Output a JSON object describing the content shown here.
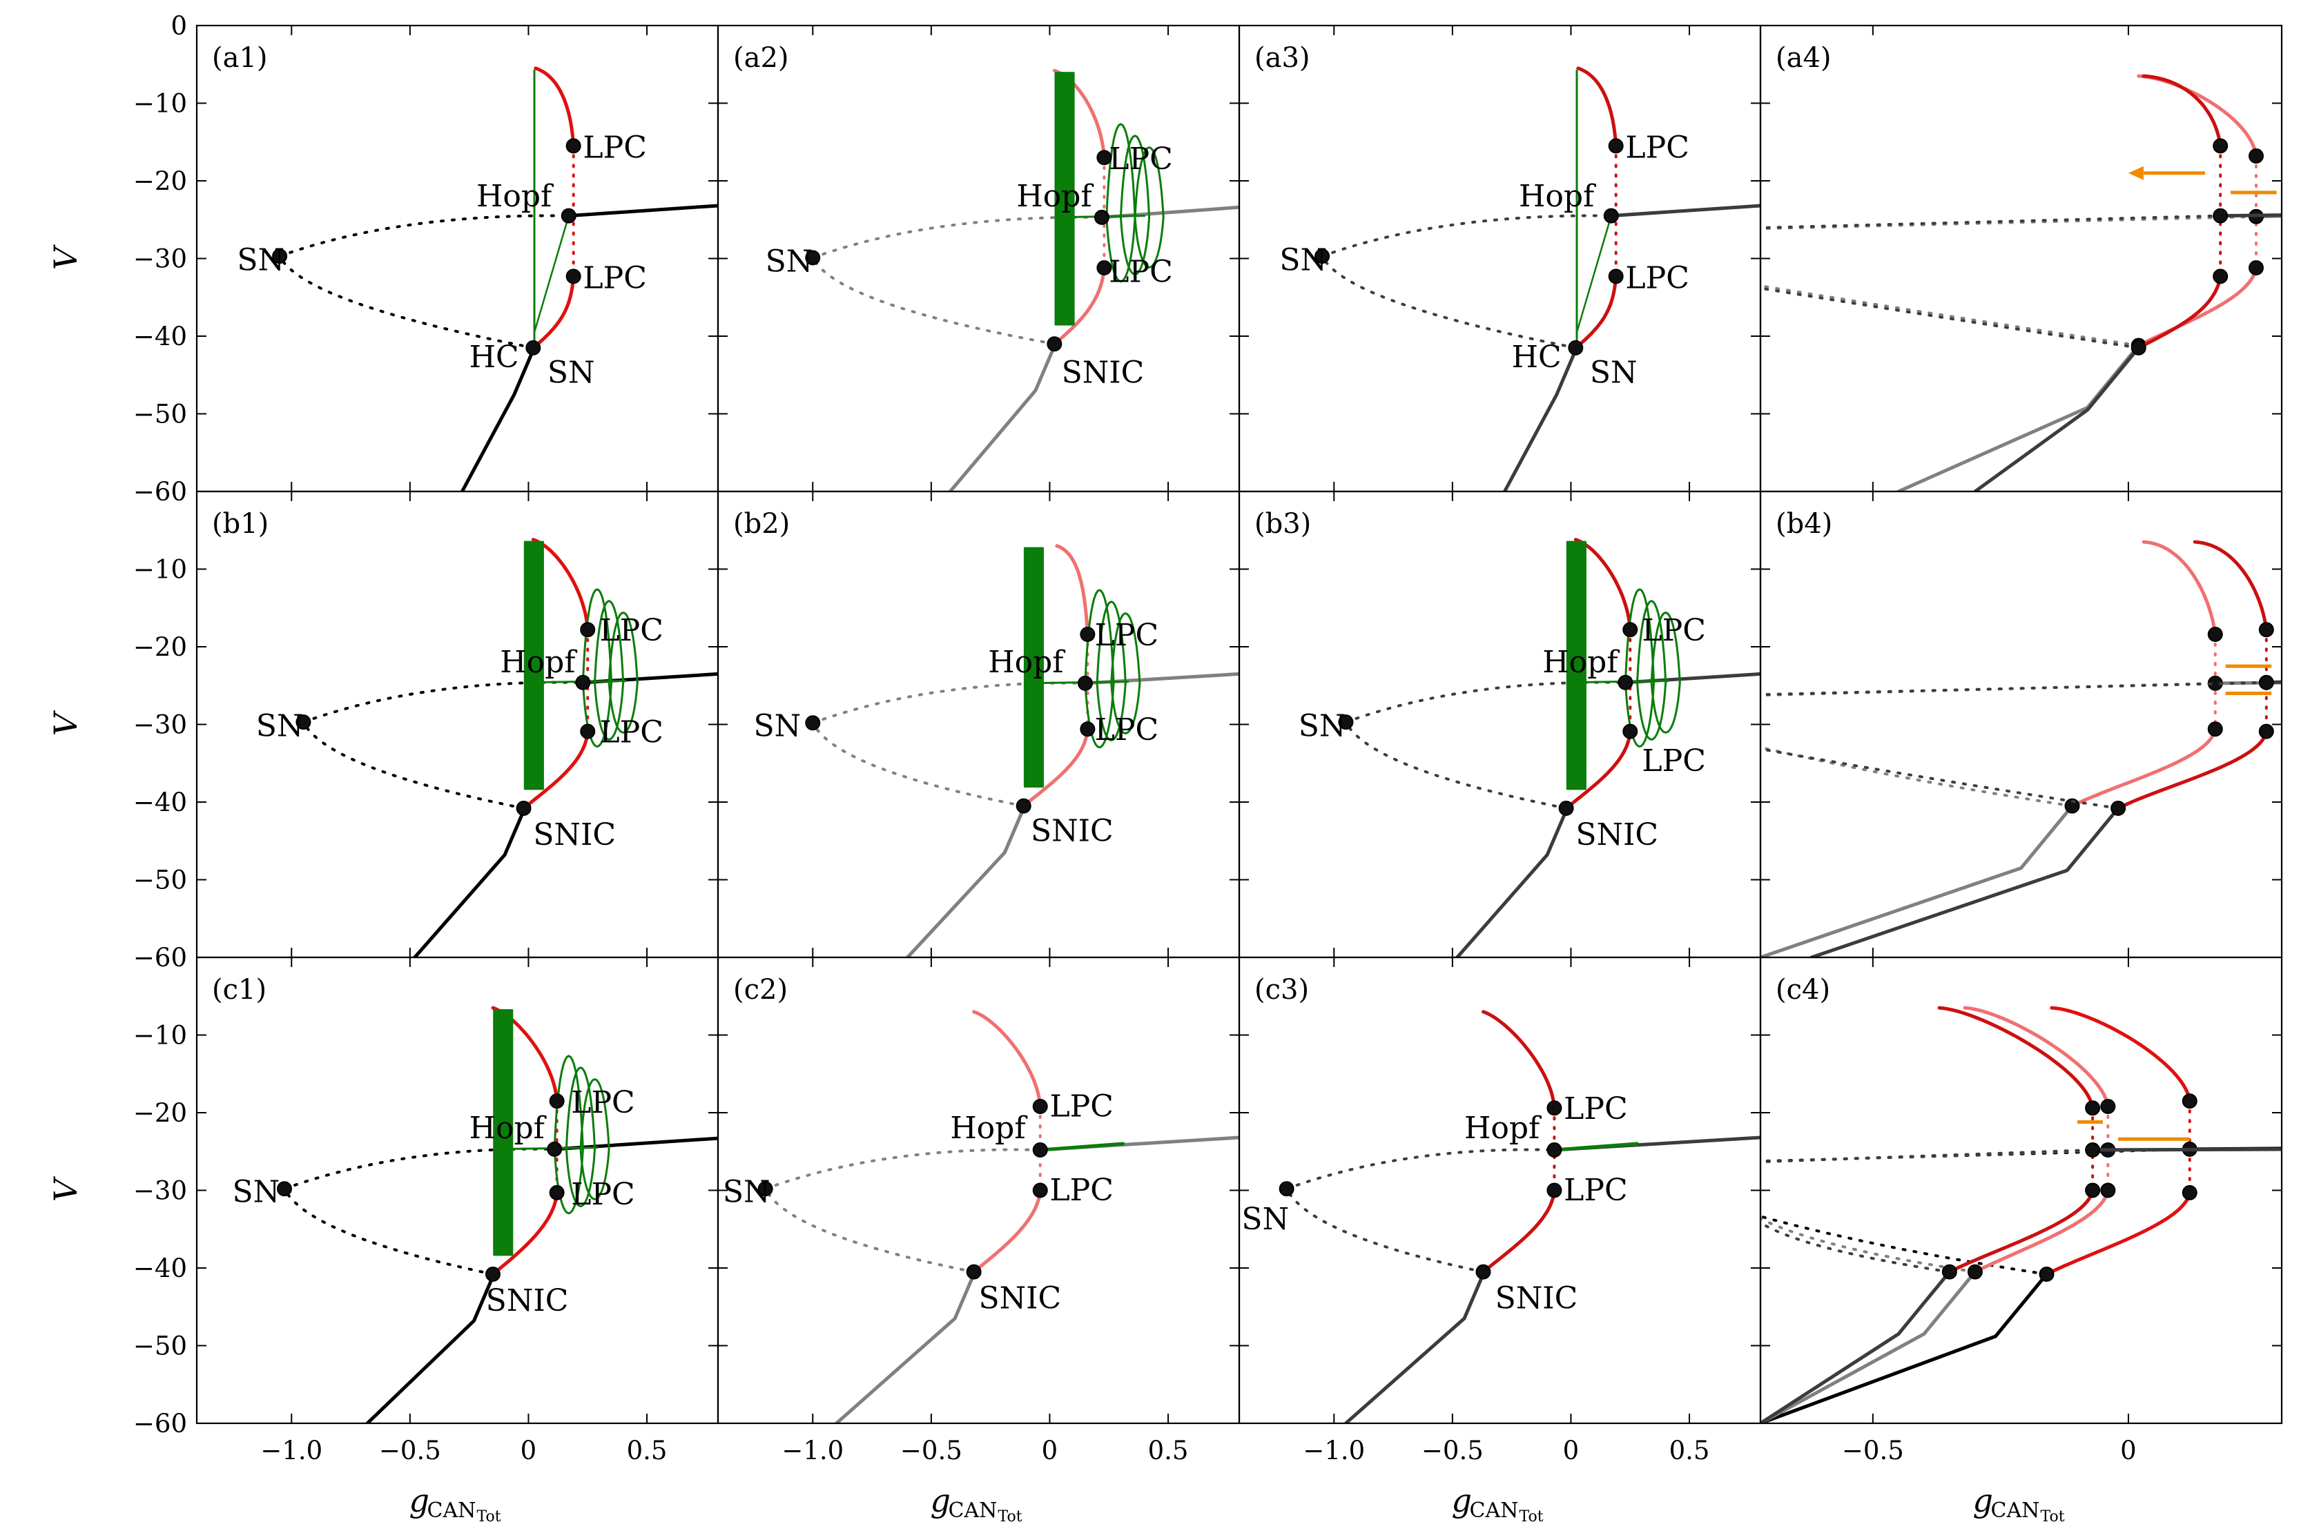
{
  "chart_data": {
    "type": "line",
    "description_axes": {
      "ylabel": "V",
      "xlabel_main": "g",
      "xlabel_sub": "CAN",
      "xlabel_subsub": "Tot",
      "ylim": [
        -60,
        0
      ],
      "yticks": [
        0,
        -10,
        -20,
        -30,
        -40,
        -50,
        -60
      ],
      "ytick_labels": [
        "0",
        "−10",
        "−20",
        "−30",
        "−40",
        "−50",
        "−60"
      ]
    },
    "columns": [
      {
        "xlim": [
          -1.4,
          0.8
        ],
        "xticks": [
          -1.0,
          -0.5,
          0,
          0.5
        ],
        "xtick_labels": [
          "−1.0",
          "−0.5",
          "0",
          "0.5"
        ]
      },
      {
        "xlim": [
          -1.4,
          0.8
        ],
        "xticks": [
          -1.0,
          -0.5,
          0,
          0.5
        ],
        "xtick_labels": [
          "−1.0",
          "−0.5",
          "0",
          "0.5"
        ]
      },
      {
        "xlim": [
          -1.4,
          0.8
        ],
        "xticks": [
          -1.0,
          -0.5,
          0,
          0.5
        ],
        "xtick_labels": [
          "−1.0",
          "−0.5",
          "0",
          "0.5"
        ]
      },
      {
        "xlim": [
          -0.72,
          0.3
        ],
        "xticks": [
          -0.5,
          0
        ],
        "xtick_labels": [
          "−0.5",
          "0"
        ]
      }
    ],
    "panels": [
      {
        "id": "a1",
        "label": "(a1)",
        "row": 0,
        "col": 0,
        "stable": "#000000",
        "cycle": "#e01010",
        "green": "osc1",
        "sn": [
          -1.05,
          -29.7
        ],
        "fold": [
          0.02,
          -41.5
        ],
        "hopf": [
          0.17,
          -24.5
        ],
        "lpc_top": [
          0.19,
          -15.5
        ],
        "lpc_bot": [
          0.19,
          -32.3
        ],
        "top": [
          0.03,
          -5.5
        ],
        "right_end": 0.8,
        "right_v": -23.2,
        "low_start": -0.28,
        "labels": [
          {
            "t": "SN",
            "x": -1.23,
            "y": -31.5
          },
          {
            "t": "HC",
            "x": -0.25,
            "y": -44
          },
          {
            "t": "SN",
            "x": 0.08,
            "y": -46
          },
          {
            "t": "Hopf",
            "x": -0.22,
            "y": -23.3
          },
          {
            "t": "LPC",
            "x": 0.23,
            "y": -17
          },
          {
            "t": "LPC",
            "x": 0.23,
            "y": -33.8
          }
        ]
      },
      {
        "id": "a2",
        "label": "(a2)",
        "row": 0,
        "col": 1,
        "stable": "#808080",
        "cycle": "#f07070",
        "green": "osc2",
        "sn": [
          -1.0,
          -29.9
        ],
        "fold": [
          0.02,
          -41.0
        ],
        "hopf": [
          0.22,
          -24.7
        ],
        "lpc_top": [
          0.23,
          -17.0
        ],
        "lpc_bot": [
          0.23,
          -31.2
        ],
        "top": [
          0.02,
          -5.8
        ],
        "right_end": 0.8,
        "right_v": -23.4,
        "low_start": -0.42,
        "labels": [
          {
            "t": "SN",
            "x": -1.2,
            "y": -31.7
          },
          {
            "t": "SNIC",
            "x": 0.05,
            "y": -46
          },
          {
            "t": "Hopf",
            "x": -0.14,
            "y": -23.3
          },
          {
            "t": "LPC",
            "x": 0.25,
            "y": -18.5
          },
          {
            "t": "LPC",
            "x": 0.25,
            "y": -33
          }
        ]
      },
      {
        "id": "a3",
        "label": "(a3)",
        "row": 0,
        "col": 2,
        "stable": "#3c3c3c",
        "cycle": "#cc1010",
        "green": "osc1",
        "sn": [
          -1.05,
          -29.7
        ],
        "fold": [
          0.02,
          -41.5
        ],
        "hopf": [
          0.17,
          -24.5
        ],
        "lpc_top": [
          0.19,
          -15.5
        ],
        "lpc_bot": [
          0.19,
          -32.3
        ],
        "top": [
          0.03,
          -5.5
        ],
        "right_end": 0.8,
        "right_v": -23.2,
        "low_start": -0.28,
        "labels": [
          {
            "t": "SN",
            "x": -1.23,
            "y": -31.5
          },
          {
            "t": "HC",
            "x": -0.25,
            "y": -44
          },
          {
            "t": "SN",
            "x": 0.08,
            "y": -46
          },
          {
            "t": "Hopf",
            "x": -0.22,
            "y": -23.3
          },
          {
            "t": "LPC",
            "x": 0.23,
            "y": -17
          },
          {
            "t": "LPC",
            "x": 0.23,
            "y": -33.8
          }
        ]
      },
      {
        "id": "b1",
        "label": "(b1)",
        "row": 1,
        "col": 0,
        "stable": "#000000",
        "cycle": "#e01010",
        "green": "osc3",
        "sn": [
          -0.95,
          -29.7
        ],
        "fold": [
          -0.02,
          -40.8
        ],
        "hopf": [
          0.23,
          -24.6
        ],
        "lpc_top": [
          0.25,
          -17.8
        ],
        "lpc_bot": [
          0.25,
          -30.9
        ],
        "top": [
          0.02,
          -6.2
        ],
        "right_end": 0.8,
        "right_v": -23.5,
        "low_start": -0.48,
        "labels": [
          {
            "t": "SN",
            "x": -1.15,
            "y": -31.5
          },
          {
            "t": "SNIC",
            "x": 0.02,
            "y": -45.5
          },
          {
            "t": "Hopf",
            "x": -0.12,
            "y": -23.3
          },
          {
            "t": "LPC",
            "x": 0.3,
            "y": -19.2
          },
          {
            "t": "LPC",
            "x": 0.3,
            "y": -32.3
          }
        ]
      },
      {
        "id": "b2",
        "label": "(b2)",
        "row": 1,
        "col": 1,
        "stable": "#808080",
        "cycle": "#f07070",
        "green": "osc3",
        "sn": [
          -1.0,
          -29.8
        ],
        "fold": [
          -0.11,
          -40.5
        ],
        "hopf": [
          0.15,
          -24.7
        ],
        "lpc_top": [
          0.16,
          -18.4
        ],
        "lpc_bot": [
          0.16,
          -30.6
        ],
        "top": [
          0.03,
          -7.0
        ],
        "right_end": 0.8,
        "right_v": -23.5,
        "low_start": -0.6,
        "labels": [
          {
            "t": "SN",
            "x": -1.25,
            "y": -31.5
          },
          {
            "t": "SNIC",
            "x": -0.08,
            "y": -45
          },
          {
            "t": "Hopf",
            "x": -0.26,
            "y": -23.3
          },
          {
            "t": "LPC",
            "x": 0.19,
            "y": -19.8
          },
          {
            "t": "LPC",
            "x": 0.19,
            "y": -32
          }
        ]
      },
      {
        "id": "b3",
        "label": "(b3)",
        "row": 1,
        "col": 2,
        "stable": "#3c3c3c",
        "cycle": "#cc1010",
        "green": "osc3",
        "sn": [
          -0.95,
          -29.7
        ],
        "fold": [
          -0.02,
          -40.8
        ],
        "hopf": [
          0.23,
          -24.6
        ],
        "lpc_top": [
          0.25,
          -17.8
        ],
        "lpc_bot": [
          0.25,
          -30.9
        ],
        "top": [
          0.02,
          -6.2
        ],
        "right_end": 0.8,
        "right_v": -23.5,
        "low_start": -0.48,
        "labels": [
          {
            "t": "SN",
            "x": -1.15,
            "y": -31.5
          },
          {
            "t": "SNIC",
            "x": 0.02,
            "y": -45.5
          },
          {
            "t": "Hopf",
            "x": -0.12,
            "y": -23.3
          },
          {
            "t": "LPC",
            "x": 0.3,
            "y": -19.2
          },
          {
            "t": "LPC",
            "x": 0.3,
            "y": -36
          }
        ]
      },
      {
        "id": "c1",
        "label": "(c1)",
        "row": 2,
        "col": 0,
        "stable": "#000000",
        "cycle": "#e01010",
        "green": "osc4",
        "sn": [
          -1.03,
          -29.8
        ],
        "fold": [
          -0.15,
          -40.8
        ],
        "hopf": [
          0.11,
          -24.7
        ],
        "lpc_top": [
          0.12,
          -18.5
        ],
        "lpc_bot": [
          0.12,
          -30.3
        ],
        "top": [
          -0.15,
          -6.5
        ],
        "right_end": 0.8,
        "right_v": -23.3,
        "low_start": -0.68,
        "labels": [
          {
            "t": "SN",
            "x": -1.25,
            "y": -31.5
          },
          {
            "t": "SNIC",
            "x": -0.18,
            "y": -45.5
          },
          {
            "t": "Hopf",
            "x": -0.25,
            "y": -23.3
          },
          {
            "t": "LPC",
            "x": 0.18,
            "y": -20
          },
          {
            "t": "LPC",
            "x": 0.18,
            "y": -31.8
          }
        ]
      },
      {
        "id": "c2",
        "label": "(c2)",
        "row": 2,
        "col": 1,
        "stable": "#808080",
        "cycle": "#f07070",
        "green": "short",
        "sn": [
          -1.2,
          -29.8
        ],
        "fold": [
          -0.32,
          -40.5
        ],
        "hopf": [
          -0.04,
          -24.8
        ],
        "lpc_top": [
          -0.04,
          -19.2
        ],
        "lpc_bot": [
          -0.04,
          -30.0
        ],
        "top": [
          -0.32,
          -7.0
        ],
        "right_end": 0.8,
        "right_v": -23.2,
        "low_start": -0.9,
        "labels": [
          {
            "t": "SN",
            "x": -1.38,
            "y": -31.5
          },
          {
            "t": "SNIC",
            "x": -0.3,
            "y": -45.2
          },
          {
            "t": "Hopf",
            "x": -0.42,
            "y": -23.3
          },
          {
            "t": "LPC",
            "x": 0.0,
            "y": -20.5
          },
          {
            "t": "LPC",
            "x": 0.0,
            "y": -31.3
          }
        ]
      },
      {
        "id": "c3",
        "label": "(c3)",
        "row": 2,
        "col": 2,
        "stable": "#3c3c3c",
        "cycle": "#cc1010",
        "green": "short",
        "sn": [
          -1.2,
          -29.8
        ],
        "fold": [
          -0.37,
          -40.5
        ],
        "hopf": [
          -0.07,
          -24.8
        ],
        "lpc_top": [
          -0.07,
          -19.4
        ],
        "lpc_bot": [
          -0.07,
          -30.0
        ],
        "top": [
          -0.37,
          -7.0
        ],
        "right_end": 0.8,
        "right_v": -23.2,
        "low_start": -0.95,
        "labels": [
          {
            "t": "SN",
            "x": -1.39,
            "y": -35
          },
          {
            "t": "SNIC",
            "x": -0.32,
            "y": -45.2
          },
          {
            "t": "Hopf",
            "x": -0.45,
            "y": -23.3
          },
          {
            "t": "LPC",
            "x": -0.03,
            "y": -20.8
          },
          {
            "t": "LPC",
            "x": -0.03,
            "y": -31.3
          }
        ]
      }
    ],
    "overlay_panels": [
      {
        "id": "a4",
        "label": "(a4)",
        "row": 0,
        "col": 3
      },
      {
        "id": "b4",
        "label": "(b4)",
        "row": 1,
        "col": 3
      },
      {
        "id": "c4",
        "label": "(c4)",
        "row": 2,
        "col": 3
      }
    ],
    "row_labels": [
      "V",
      "V",
      "V"
    ],
    "colors": {
      "green": "#0a7d0a",
      "orange": "#f08a00"
    }
  }
}
